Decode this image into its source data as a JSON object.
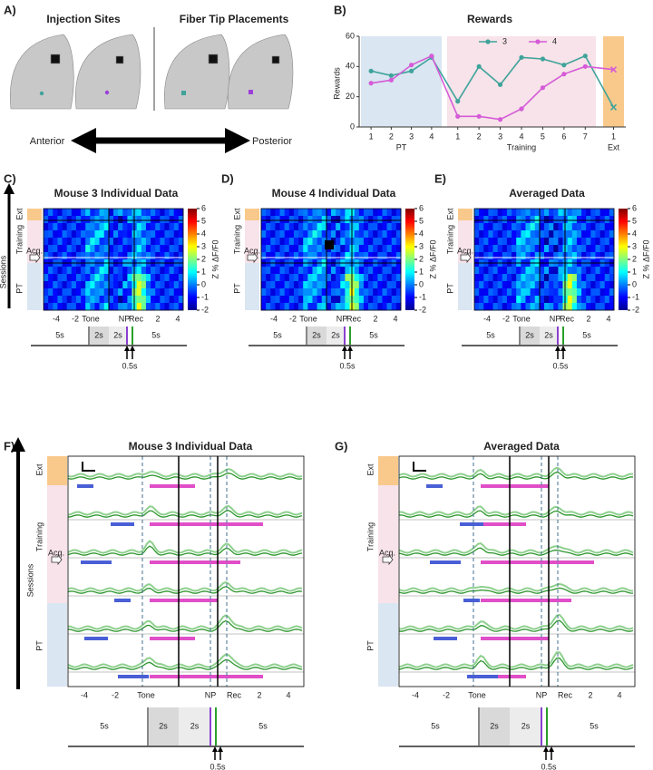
{
  "panel_a": {
    "label": "A)",
    "left_title": "Injection Sites",
    "right_title": "Fiber Tip Placements",
    "anterior": "Anterior",
    "posterior": "Posterior"
  },
  "panel_b_label": "B)",
  "chart_data": {
    "type": "line",
    "title": "Rewards",
    "y_label": "Rewards",
    "categories": [
      "1",
      "2",
      "3",
      "4",
      "1",
      "2",
      "3",
      "4",
      "5",
      "6",
      "7",
      "1"
    ],
    "groups": [
      "PT",
      "Training",
      "Ext"
    ],
    "group_colors": [
      "#dae6f1",
      "#f7e3e9",
      "#f9c98b"
    ],
    "series": [
      {
        "name": "3",
        "color": "#3fa39b",
        "values": [
          37,
          34,
          37,
          46,
          17,
          40,
          28,
          46,
          45,
          41,
          47,
          13
        ]
      },
      {
        "name": "4",
        "color": "#d55bd8",
        "values": [
          29,
          31,
          41,
          47,
          7,
          7,
          5,
          12,
          26,
          35,
          40,
          38
        ]
      }
    ],
    "ylim": [
      0,
      60
    ],
    "yticks": [
      0,
      20,
      40,
      60
    ],
    "grid": false
  },
  "heatmap_panels": [
    {
      "label": "C)",
      "title": "Mouse 3 Individual Data"
    },
    {
      "label": "D)",
      "title": "Mouse 4 Individual Data"
    },
    {
      "label": "E)",
      "title": "Averaged Data"
    }
  ],
  "trace_panels": [
    {
      "label": "F)",
      "title": "Mouse 3 Individual Data"
    },
    {
      "label": "G)",
      "title": "Averaged Data"
    }
  ],
  "common": {
    "session_labels": [
      "Ext",
      "Training",
      "PT"
    ],
    "acq": "Acq.",
    "colorbar_label": "Z % ΔF/F0",
    "colorbar_ticks": [
      6,
      5,
      4,
      3,
      2,
      1,
      0,
      -1,
      -2
    ],
    "x_tick_labels": [
      "-4",
      "-2",
      "Tone",
      "NP",
      "Rec",
      "2",
      "4"
    ],
    "timeline": [
      "5s",
      "2s",
      "2s",
      "5s"
    ],
    "delay": "0.5s",
    "sessions": "Sessions"
  }
}
